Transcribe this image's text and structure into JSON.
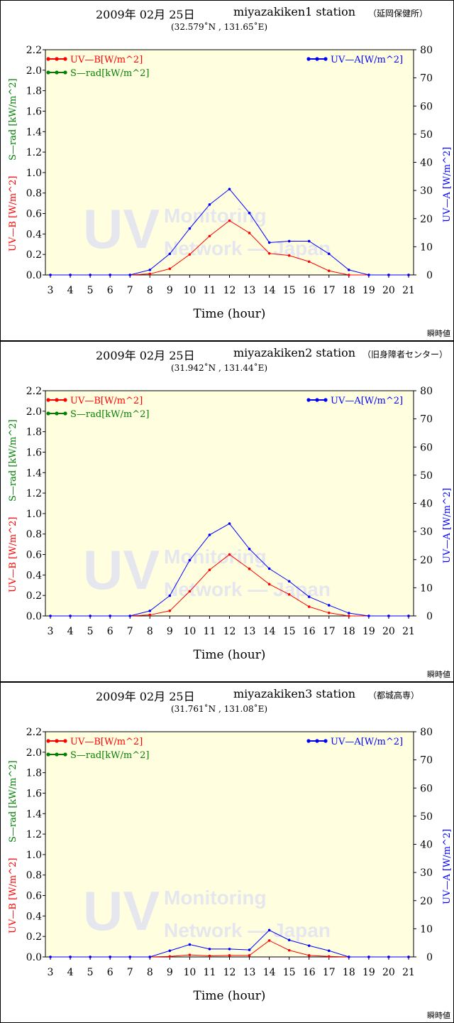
{
  "x_label": "Time (hour)",
  "legend": {
    "uvb": "UV—B[W/m^2]",
    "srad": "S—rad[kW/m^2]",
    "uva": "UV—A[W/m^2]"
  },
  "axis_labels": {
    "left_red": "UV—B [W/m^2]",
    "left_green": "S—rad [kW/m^2]",
    "right": "UV—A [W/m^2]"
  },
  "watermark": "UV Monitoring Network — Japan",
  "colors": {
    "uvb": "#ff0000",
    "srad": "#008000",
    "uva": "#0000ff",
    "plot_bg": "#ffffe0"
  },
  "panels": [
    {
      "date": "2009年 02月 25日",
      "station": "miyazakiken1 station",
      "site": "（延岡保健所）",
      "coords": "(32.579˚N , 131.65˚E)",
      "instant": "瞬時値"
    },
    {
      "date": "2009年 02月 25日",
      "station": "miyazakiken2 station",
      "site": "（旧身障者センター）",
      "coords": "(31.942˚N , 131.44˚E)",
      "instant": "瞬時値"
    },
    {
      "date": "2009年 02月 25日",
      "station": "miyazakiken3 station",
      "site": "（都城高専）",
      "coords": "(31.761˚N , 131.08˚E)",
      "instant": "瞬時値"
    }
  ],
  "chart_data": [
    {
      "type": "line",
      "title": "2009年 02月 25日 miyazakiken1 station",
      "xlabel": "Time (hour)",
      "x": [
        3,
        4,
        5,
        6,
        7,
        8,
        9,
        10,
        11,
        12,
        13,
        14,
        15,
        16,
        17,
        18,
        19,
        20,
        21
      ],
      "xlim": [
        3,
        21
      ],
      "ylim_left": [
        0,
        2.2
      ],
      "ylim_right": [
        0,
        80
      ],
      "left_ticks": [
        "0.0",
        "0.2",
        "0.4",
        "0.6",
        "0.8",
        "1.0",
        "1.2",
        "1.4",
        "1.6",
        "1.8",
        "2.0",
        "2.2"
      ],
      "right_ticks": [
        "0",
        "10",
        "20",
        "30",
        "40",
        "50",
        "60",
        "70",
        "80"
      ],
      "series": [
        {
          "name": "UV—B[W/m^2]",
          "axis": "left",
          "color": "#ff0000",
          "values": [
            0,
            0,
            0,
            0,
            0,
            0.01,
            0.06,
            0.2,
            0.38,
            0.53,
            0.41,
            0.21,
            0.19,
            0.13,
            0.04,
            0,
            0,
            0,
            0
          ]
        },
        {
          "name": "UV—A[W/m^2]",
          "axis": "right",
          "color": "#0000ff",
          "values": [
            0,
            0,
            0,
            0,
            0,
            1.8,
            7.5,
            16.5,
            25,
            30.5,
            22,
            11.5,
            12,
            12,
            7.5,
            1.8,
            0,
            0,
            0
          ]
        }
      ]
    },
    {
      "type": "line",
      "title": "2009年 02月 25日 miyazakiken2 station",
      "xlabel": "Time (hour)",
      "x": [
        3,
        4,
        5,
        6,
        7,
        8,
        9,
        10,
        11,
        12,
        13,
        14,
        15,
        16,
        17,
        18,
        19,
        20,
        21
      ],
      "xlim": [
        3,
        21
      ],
      "ylim_left": [
        0,
        2.2
      ],
      "ylim_right": [
        0,
        80
      ],
      "left_ticks": [
        "0.0",
        "0.2",
        "0.4",
        "0.6",
        "0.8",
        "1.0",
        "1.2",
        "1.4",
        "1.6",
        "1.8",
        "2.0",
        "2.2"
      ],
      "right_ticks": [
        "0",
        "10",
        "20",
        "30",
        "40",
        "50",
        "60",
        "70",
        "80"
      ],
      "series": [
        {
          "name": "UV—B[W/m^2]",
          "axis": "left",
          "color": "#ff0000",
          "values": [
            0,
            0,
            0,
            0,
            0,
            0.01,
            0.05,
            0.24,
            0.45,
            0.6,
            0.46,
            0.31,
            0.21,
            0.09,
            0.03,
            0,
            0,
            0,
            0
          ]
        },
        {
          "name": "UV—A[W/m^2]",
          "axis": "right",
          "color": "#0000ff",
          "values": [
            0,
            0,
            0,
            0,
            0,
            1.8,
            7.2,
            19.8,
            28.8,
            32.8,
            23.8,
            16.8,
            12.3,
            6.8,
            3.8,
            1,
            0,
            0,
            0
          ]
        }
      ]
    },
    {
      "type": "line",
      "title": "2009年 02月 25日 miyazakiken3 station",
      "xlabel": "Time (hour)",
      "x": [
        3,
        4,
        5,
        6,
        7,
        8,
        9,
        10,
        11,
        12,
        13,
        14,
        15,
        16,
        17,
        18,
        19,
        20,
        21
      ],
      "xlim": [
        3,
        21
      ],
      "ylim_left": [
        0,
        2.2
      ],
      "ylim_right": [
        0,
        80
      ],
      "left_ticks": [
        "0.0",
        "0.2",
        "0.4",
        "0.6",
        "0.8",
        "1.0",
        "1.2",
        "1.4",
        "1.6",
        "1.8",
        "2.0",
        "2.2"
      ],
      "right_ticks": [
        "0",
        "10",
        "20",
        "30",
        "40",
        "50",
        "60",
        "70",
        "80"
      ],
      "series": [
        {
          "name": "UV—B[W/m^2]",
          "axis": "left",
          "color": "#ff0000",
          "values": [
            0,
            0,
            0,
            0,
            0,
            0,
            0.005,
            0.02,
            0.01,
            0.015,
            0.015,
            0.16,
            0.065,
            0.015,
            0.005,
            0,
            0,
            0,
            0
          ]
        },
        {
          "name": "UV—A[W/m^2]",
          "axis": "right",
          "color": "#0000ff",
          "values": [
            0,
            0,
            0,
            0,
            0,
            0,
            2.2,
            4.4,
            2.8,
            2.8,
            2.5,
            9.5,
            6,
            4,
            2.2,
            0,
            0,
            0,
            0
          ]
        }
      ]
    }
  ]
}
